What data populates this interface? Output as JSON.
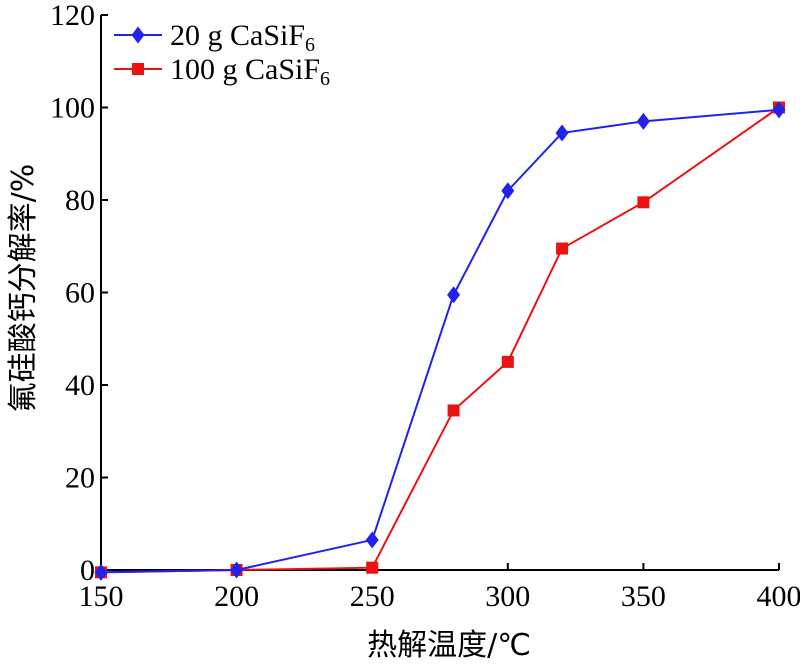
{
  "chart_data": {
    "type": "line",
    "title": "",
    "xlabel": "热解温度/℃",
    "ylabel": "氟硅酸钙分解率/%",
    "xlim": [
      150,
      400
    ],
    "ylim": [
      0,
      120
    ],
    "xticks": [
      150,
      200,
      250,
      300,
      350,
      400
    ],
    "yticks": [
      0,
      20,
      40,
      60,
      80,
      100,
      120
    ],
    "grid": false,
    "legend_position": "top-left",
    "series": [
      {
        "name": "20 g CaSiF",
        "name_sub": "6",
        "color": "#2222ee",
        "marker": "diamond",
        "x": [
          150,
          200,
          250,
          280,
          300,
          320,
          350,
          400
        ],
        "y": [
          -0.5,
          0,
          6.5,
          59.5,
          82,
          94.5,
          97,
          99.5
        ]
      },
      {
        "name": "100 g CaSiF",
        "name_sub": "6",
        "color": "#ee1111",
        "marker": "square",
        "x": [
          150,
          200,
          250,
          280,
          300,
          320,
          350,
          400
        ],
        "y": [
          -0.5,
          0,
          0.5,
          34.5,
          45,
          69.5,
          79.5,
          100
        ]
      }
    ]
  }
}
